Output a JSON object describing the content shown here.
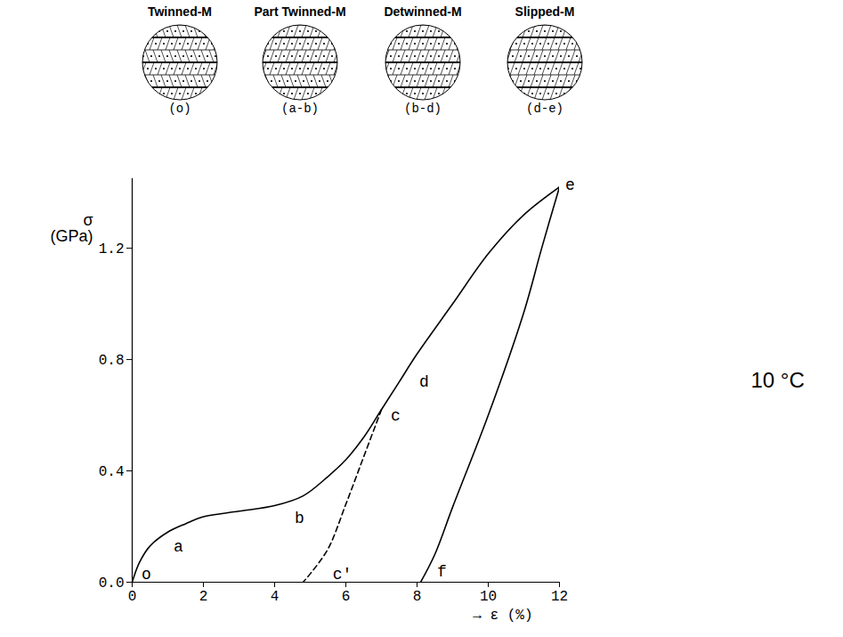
{
  "chart_data": {
    "type": "line",
    "x_label": "→ ε (%)",
    "y_label": "σ (GPa)",
    "xlim": [
      0,
      12
    ],
    "ylim": [
      0,
      1.45
    ],
    "xticks": [
      0,
      2,
      4,
      6,
      8,
      10,
      12
    ],
    "yticks": [
      {
        "value": 0,
        "label": "0.0"
      },
      {
        "value": 0.4,
        "label": "0.4"
      },
      {
        "value": 0.8,
        "label": "0.8"
      },
      {
        "value": 1.2,
        "label": "1.2"
      }
    ],
    "grid": false,
    "note": "10 °C",
    "series": [
      {
        "color": "#000000",
        "line_style": "solid",
        "x": [
          0,
          0.2,
          0.5,
          1,
          1.5,
          2,
          3,
          4,
          4.8,
          5.5,
          6,
          6.5,
          7,
          7.5,
          8,
          9,
          10,
          11,
          12
        ],
        "values": [
          0,
          0.07,
          0.13,
          0.18,
          0.21,
          0.235,
          0.255,
          0.275,
          0.31,
          0.38,
          0.44,
          0.52,
          0.62,
          0.72,
          0.82,
          1.0,
          1.18,
          1.32,
          1.42
        ]
      },
      {
        "color": "#000000",
        "line_style": "dashed",
        "x": [
          7,
          6.5,
          6,
          5.5,
          5,
          4.8
        ],
        "values": [
          0.62,
          0.45,
          0.28,
          0.12,
          0.03,
          0
        ]
      },
      {
        "color": "#000000",
        "line_style": "solid",
        "x": [
          12,
          11.5,
          11,
          10,
          9,
          8.5,
          8.1
        ],
        "values": [
          1.42,
          1.2,
          0.97,
          0.6,
          0.27,
          0.1,
          0
        ]
      }
    ],
    "point_labels": [
      {
        "text": "o",
        "x": 0.4,
        "y": 0.03
      },
      {
        "text": "a",
        "x": 1.3,
        "y": 0.13
      },
      {
        "text": "b",
        "x": 4.7,
        "y": 0.23
      },
      {
        "text": "c",
        "x": 7.4,
        "y": 0.6
      },
      {
        "text": "d",
        "x": 8.2,
        "y": 0.72
      },
      {
        "text": "e",
        "x": 12.3,
        "y": 1.43
      },
      {
        "text": "c'",
        "x": 5.9,
        "y": 0.03
      },
      {
        "text": "f",
        "x": 8.7,
        "y": 0.04
      }
    ],
    "diagrams": [
      {
        "title": "Twinned-M",
        "label": "(o)"
      },
      {
        "title": "Part Twinned-M",
        "label": "(a-b)"
      },
      {
        "title": "Detwinned-M",
        "label": "(b-d)"
      },
      {
        "title": "Slipped-M",
        "label": "(d-e)"
      }
    ]
  }
}
